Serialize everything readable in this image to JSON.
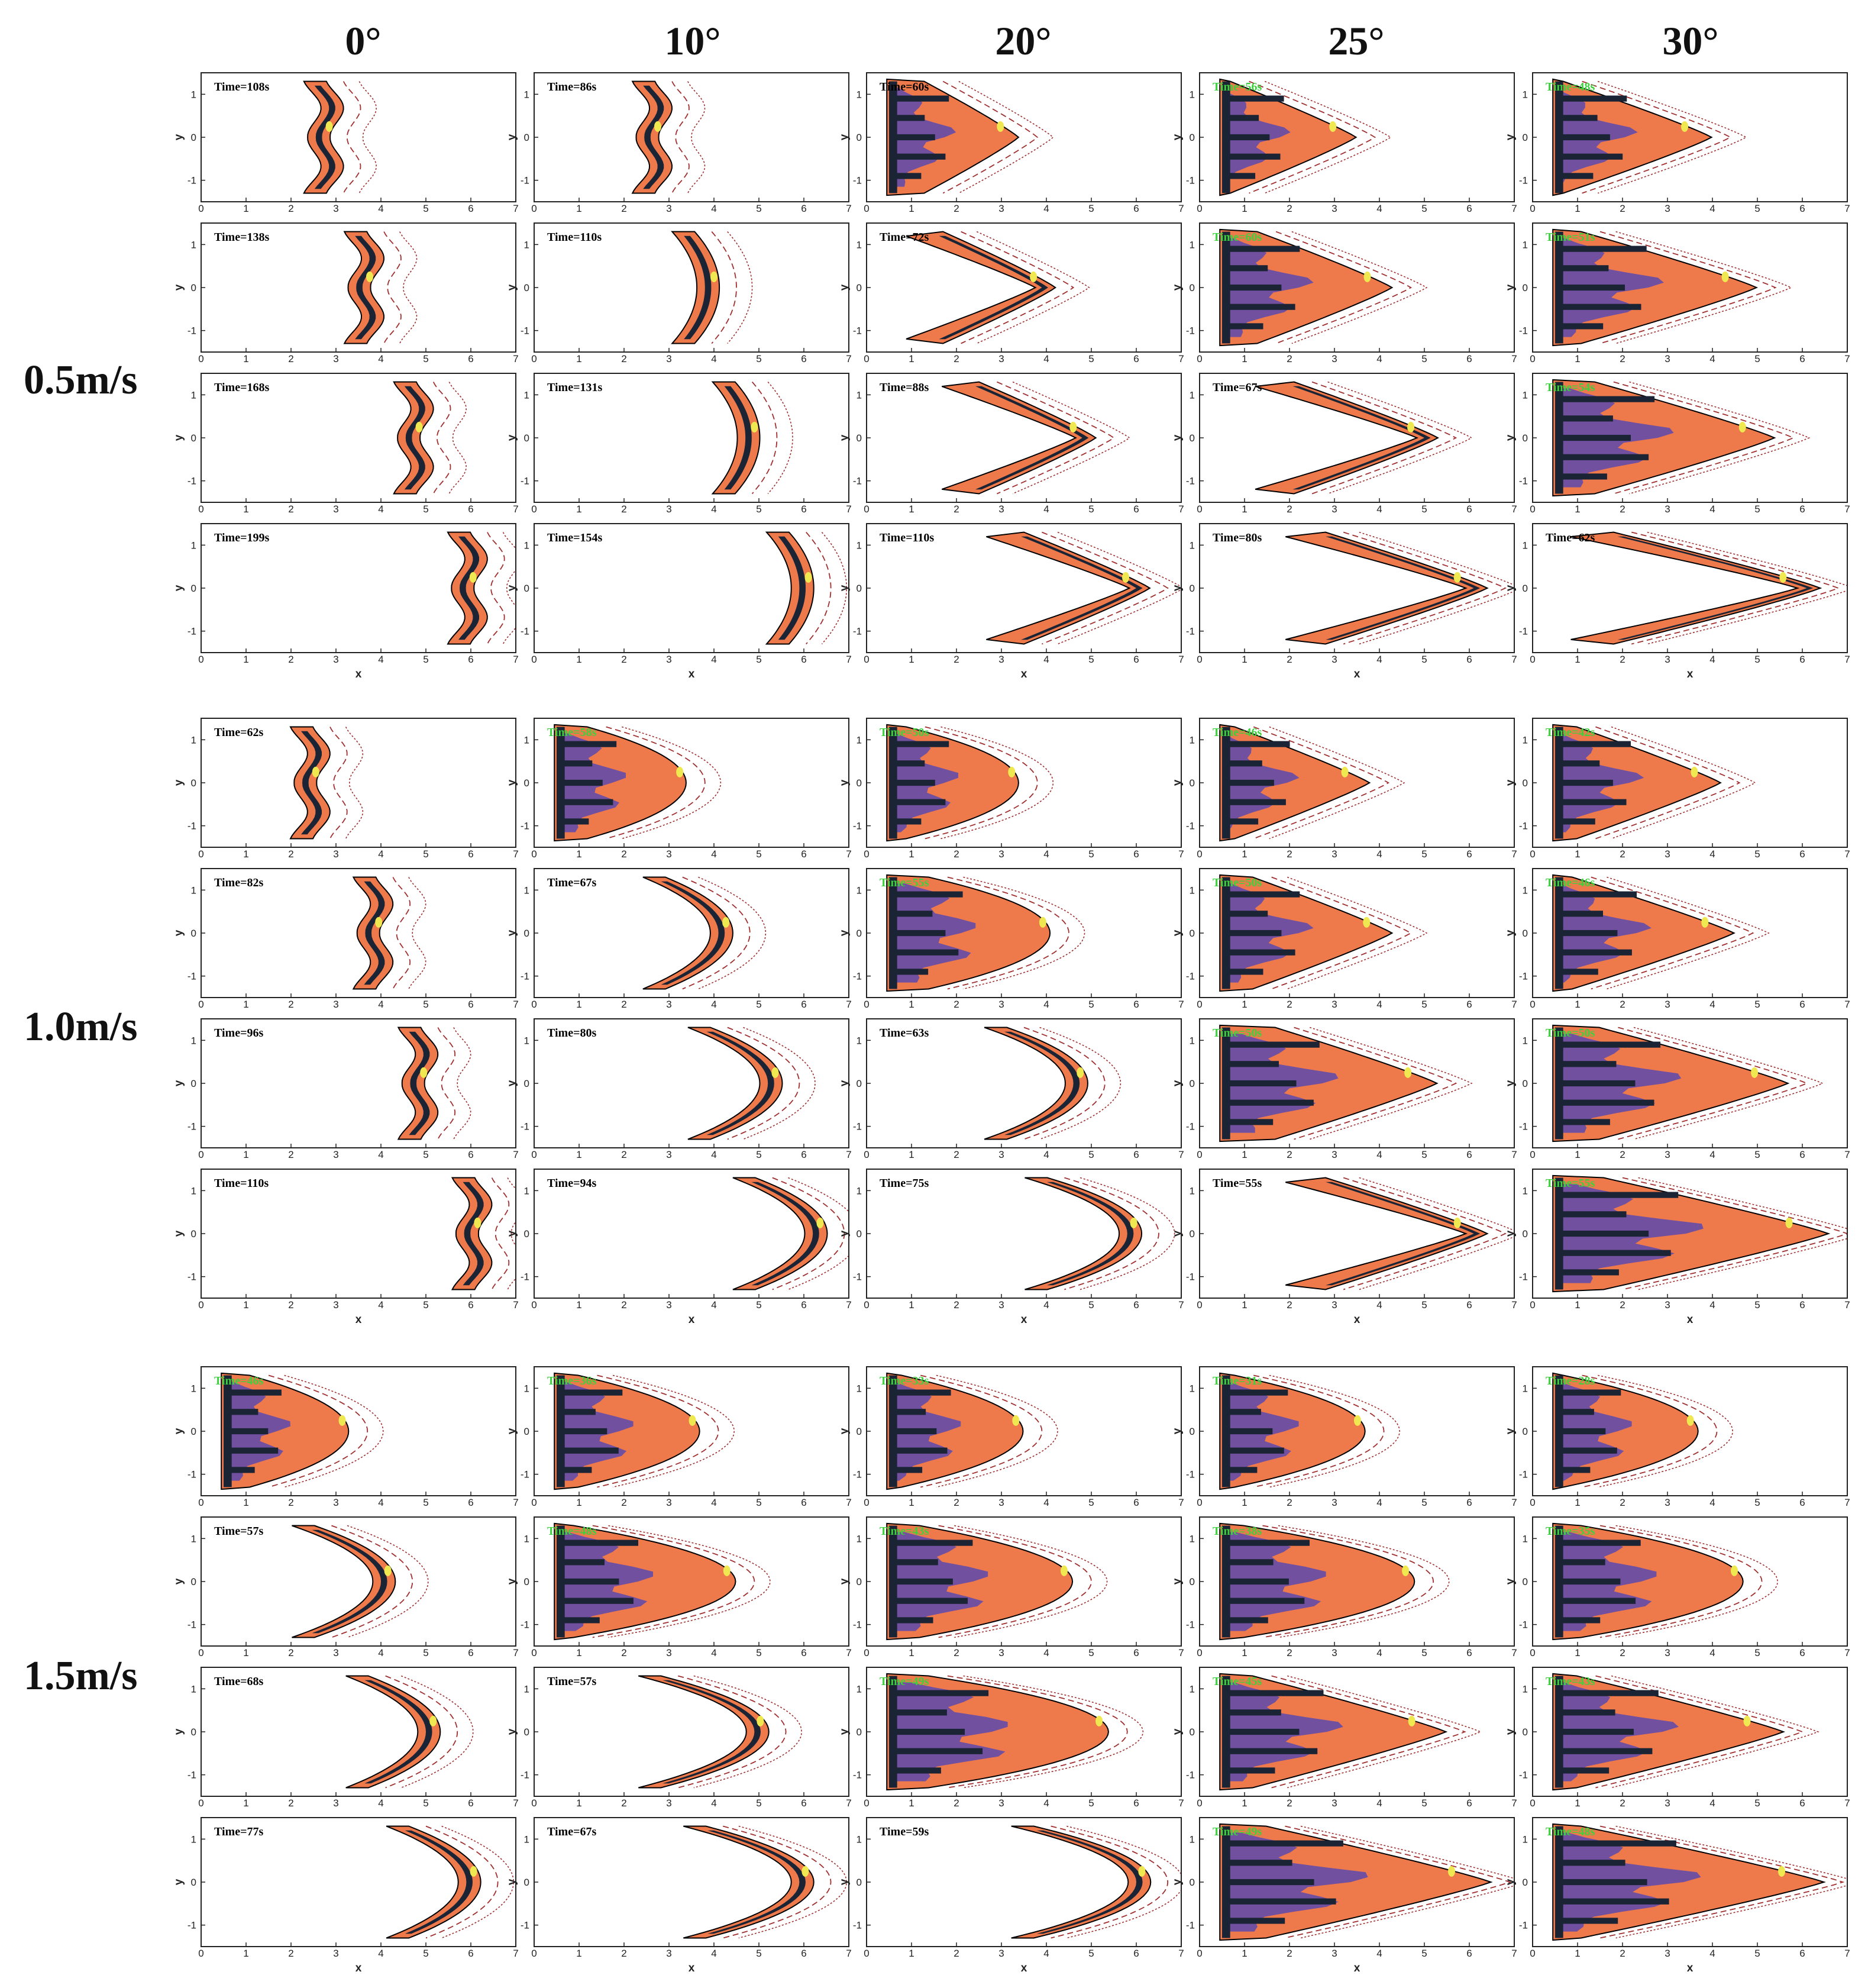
{
  "chart_data": {
    "type": "contour-grid",
    "column_labels": [
      "0°",
      "10°",
      "20°",
      "25°",
      "30°"
    ],
    "row_group_labels": [
      "0.5m/s",
      "1.0m/s",
      "1.5m/s"
    ],
    "xlabel": "x",
    "ylabel": "y",
    "xlim": [
      0,
      7
    ],
    "ylim": [
      -1.5,
      1.5
    ],
    "x_ticks": [
      "0",
      "1",
      "2",
      "3",
      "4",
      "5",
      "6",
      "7"
    ],
    "y_ticks": [
      "-1",
      "0",
      "1"
    ],
    "colors": {
      "orange": "#ee7a4c",
      "dark": "#1b2434",
      "purple": "#7150a0",
      "yellow": "#f0e850",
      "contour_red": "#a03030",
      "time_black": "#000000",
      "time_green": "#3cd23c"
    },
    "groups": [
      {
        "label": "0.5m/s",
        "rows": [
          [
            {
              "time": "Time=108s",
              "front_x": 3.1,
              "cusp": 0.35,
              "fill": "band",
              "shape": "s"
            },
            {
              "time": "Time=86s",
              "front_x": 3.0,
              "cusp": 0.35,
              "fill": "band",
              "shape": "s"
            },
            {
              "time": "Time=60s",
              "front_x": 3.3,
              "cusp": 2.1,
              "fill": "wedge",
              "shape": "v"
            },
            {
              "time": "Time=56s",
              "front_x": 3.4,
              "cusp": 2.8,
              "fill": "wedge",
              "shape": "v"
            },
            {
              "time": "Time=48s",
              "front_x": 3.9,
              "cusp": 3.3,
              "fill": "wedge",
              "shape": "v"
            }
          ],
          [
            {
              "time": "Time=138s",
              "front_x": 4.0,
              "cusp": 0.35,
              "fill": "band",
              "shape": "s"
            },
            {
              "time": "Time=110s",
              "front_x": 4.0,
              "cusp": 0.55,
              "fill": "band",
              "shape": "c"
            },
            {
              "time": "Time=72s",
              "front_x": 4.1,
              "cusp": 2.5,
              "fill": "arrow",
              "shape": "v"
            },
            {
              "time": "Time=60s",
              "front_x": 4.2,
              "cusp": 3.0,
              "fill": "wedge",
              "shape": "v"
            },
            {
              "time": "Time=51s",
              "front_x": 4.9,
              "cusp": 3.9,
              "fill": "wedge",
              "shape": "v"
            }
          ],
          [
            {
              "time": "Time=168s",
              "front_x": 5.1,
              "cusp": 0.35,
              "fill": "band",
              "shape": "s"
            },
            {
              "time": "Time=131s",
              "front_x": 4.9,
              "cusp": 0.55,
              "fill": "band",
              "shape": "c"
            },
            {
              "time": "Time=88s",
              "front_x": 5.0,
              "cusp": 2.6,
              "fill": "arrow",
              "shape": "v"
            },
            {
              "time": "Time=67s",
              "front_x": 5.2,
              "cusp": 3.2,
              "fill": "arrow",
              "shape": "v"
            },
            {
              "time": "Time=54s",
              "front_x": 5.3,
              "cusp": 4.0,
              "fill": "wedge",
              "shape": "v"
            }
          ],
          [
            {
              "time": "Time=199s",
              "front_x": 6.3,
              "cusp": 0.35,
              "fill": "band",
              "shape": "s"
            },
            {
              "time": "Time=154s",
              "front_x": 6.1,
              "cusp": 0.55,
              "fill": "band",
              "shape": "c"
            },
            {
              "time": "Time=110s",
              "front_x": 6.2,
              "cusp": 2.8,
              "fill": "arrow",
              "shape": "v"
            },
            {
              "time": "Time=80s",
              "front_x": 6.3,
              "cusp": 3.6,
              "fill": "arrow",
              "shape": "v"
            },
            {
              "time": "Time=62s",
              "front_x": 6.3,
              "cusp": 4.6,
              "fill": "arrow",
              "shape": "v"
            }
          ]
        ]
      },
      {
        "label": "1.0m/s",
        "rows": [
          [
            {
              "time": "Time=62s",
              "front_x": 2.8,
              "cusp": 0.3,
              "fill": "band",
              "shape": "s"
            },
            {
              "time": "Time=58s",
              "front_x": 3.3,
              "cusp": 2.2,
              "fill": "wedge",
              "shape": "c"
            },
            {
              "time": "Time=50s",
              "front_x": 3.3,
              "cusp": 2.5,
              "fill": "wedge",
              "shape": "c"
            },
            {
              "time": "Time=46s",
              "front_x": 3.7,
              "cusp": 3.0,
              "fill": "wedge",
              "shape": "v"
            },
            {
              "time": "Time=42s",
              "front_x": 4.1,
              "cusp": 3.2,
              "fill": "wedge",
              "shape": "v"
            }
          ],
          [
            {
              "time": "Time=82s",
              "front_x": 4.2,
              "cusp": 0.6,
              "fill": "band",
              "shape": "s"
            },
            {
              "time": "Time=67s",
              "front_x": 4.3,
              "cusp": 1.5,
              "fill": "band",
              "shape": "c"
            },
            {
              "time": "Time=55s",
              "front_x": 4.0,
              "cusp": 2.7,
              "fill": "wedge",
              "shape": "c"
            },
            {
              "time": "Time=50s",
              "front_x": 4.2,
              "cusp": 3.1,
              "fill": "wedge",
              "shape": "v"
            },
            {
              "time": "Time=46s",
              "front_x": 4.4,
              "cusp": 3.6,
              "fill": "wedge",
              "shape": "v"
            }
          ],
          [
            {
              "time": "Time=96s",
              "front_x": 5.2,
              "cusp": 0.7,
              "fill": "band",
              "shape": "s"
            },
            {
              "time": "Time=80s",
              "front_x": 5.4,
              "cusp": 1.6,
              "fill": "band",
              "shape": "c"
            },
            {
              "time": "Time=63s",
              "front_x": 4.8,
              "cusp": 1.8,
              "fill": "band",
              "shape": "c"
            },
            {
              "time": "Time=50s",
              "front_x": 5.2,
              "cusp": 3.6,
              "fill": "wedge",
              "shape": "v"
            },
            {
              "time": "Time=50s",
              "front_x": 5.6,
              "cusp": 4.2,
              "fill": "wedge",
              "shape": "v"
            }
          ],
          [
            {
              "time": "Time=110s",
              "front_x": 6.4,
              "cusp": 0.7,
              "fill": "band",
              "shape": "s"
            },
            {
              "time": "Time=94s",
              "front_x": 6.4,
              "cusp": 1.6,
              "fill": "band",
              "shape": "c"
            },
            {
              "time": "Time=75s",
              "front_x": 6.0,
              "cusp": 2.1,
              "fill": "band",
              "shape": "c"
            },
            {
              "time": "Time=55s",
              "front_x": 6.3,
              "cusp": 3.6,
              "fill": "arrow",
              "shape": "v"
            },
            {
              "time": "Time=55s",
              "front_x": 6.5,
              "cusp": 5.0,
              "fill": "wedge",
              "shape": "v"
            }
          ]
        ]
      },
      {
        "label": "1.5m/s",
        "rows": [
          [
            {
              "time": "Time=46s",
              "front_x": 3.2,
              "cusp": 2.2,
              "fill": "wedge",
              "shape": "c"
            },
            {
              "time": "Time=36s",
              "front_x": 3.6,
              "cusp": 2.7,
              "fill": "wedge",
              "shape": "c"
            },
            {
              "time": "Time=33s",
              "front_x": 3.4,
              "cusp": 2.7,
              "fill": "wedge",
              "shape": "c"
            },
            {
              "time": "Time=31s",
              "front_x": 3.6,
              "cusp": 2.9,
              "fill": "wedge",
              "shape": "c"
            },
            {
              "time": "Time=28s",
              "front_x": 3.6,
              "cusp": 3.0,
              "fill": "wedge",
              "shape": "c"
            }
          ],
          [
            {
              "time": "Time=57s",
              "front_x": 4.2,
              "cusp": 1.8,
              "fill": "band",
              "shape": "c"
            },
            {
              "time": "Time=48s",
              "front_x": 4.4,
              "cusp": 3.6,
              "fill": "wedge",
              "shape": "c"
            },
            {
              "time": "Time=43s",
              "front_x": 4.5,
              "cusp": 3.4,
              "fill": "wedge",
              "shape": "c"
            },
            {
              "time": "Time=38s",
              "front_x": 4.7,
              "cusp": 3.8,
              "fill": "wedge",
              "shape": "c"
            },
            {
              "time": "Time=35s",
              "front_x": 4.6,
              "cusp": 3.6,
              "fill": "wedge",
              "shape": "c"
            }
          ],
          [
            {
              "time": "Time=68s",
              "front_x": 5.2,
              "cusp": 1.6,
              "fill": "band",
              "shape": "c"
            },
            {
              "time": "Time=57s",
              "front_x": 5.1,
              "cusp": 2.4,
              "fill": "band",
              "shape": "c"
            },
            {
              "time": "Time=49s",
              "front_x": 5.3,
              "cusp": 4.0,
              "fill": "wedge",
              "shape": "c"
            },
            {
              "time": "Time=45s",
              "front_x": 5.4,
              "cusp": 4.3,
              "fill": "wedge",
              "shape": "v"
            },
            {
              "time": "Time=43s",
              "front_x": 5.5,
              "cusp": 4.6,
              "fill": "wedge",
              "shape": "v"
            }
          ],
          [
            {
              "time": "Time=77s",
              "front_x": 6.1,
              "cusp": 1.6,
              "fill": "band",
              "shape": "c"
            },
            {
              "time": "Time=67s",
              "front_x": 6.1,
              "cusp": 2.4,
              "fill": "band",
              "shape": "c"
            },
            {
              "time": "Time=59s",
              "front_x": 6.2,
              "cusp": 2.6,
              "fill": "band",
              "shape": "c"
            },
            {
              "time": "Time=49s",
              "front_x": 6.4,
              "cusp": 5.0,
              "fill": "wedge",
              "shape": "v"
            },
            {
              "time": "Time=48s",
              "front_x": 6.4,
              "cusp": 5.4,
              "fill": "wedge",
              "shape": "v"
            }
          ]
        ]
      }
    ]
  }
}
